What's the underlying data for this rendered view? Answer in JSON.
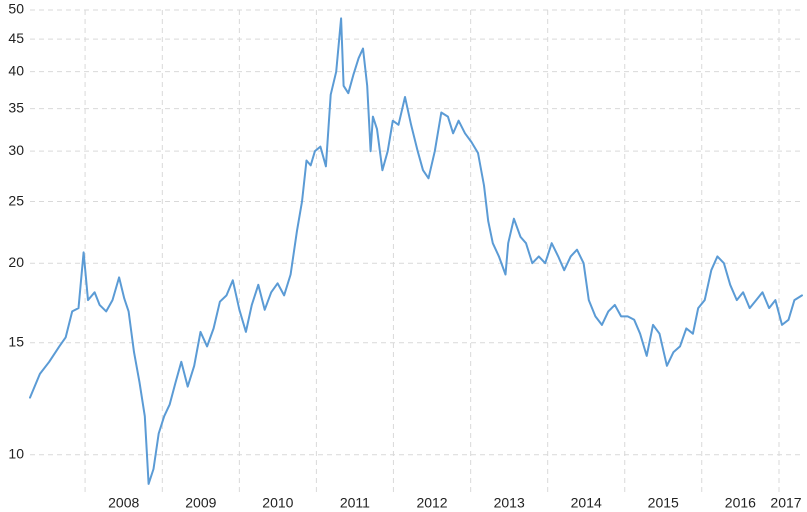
{
  "chart_data": {
    "type": "line",
    "title": "",
    "xlabel": "",
    "ylabel": "",
    "y_scale": "log",
    "ylim": [
      8.9,
      50
    ],
    "xlim": [
      "2007-04-15",
      "2017-04-20"
    ],
    "grid": true,
    "legend": "none",
    "y_ticks": [
      {
        "value": 10,
        "label": "10"
      },
      {
        "value": 15,
        "label": "15"
      },
      {
        "value": 20,
        "label": "20"
      },
      {
        "value": 25,
        "label": "25"
      },
      {
        "value": 30,
        "label": "30"
      },
      {
        "value": 35,
        "label": "35"
      },
      {
        "value": 40,
        "label": "40"
      },
      {
        "value": 45,
        "label": "45"
      },
      {
        "value": 50,
        "label": "50"
      }
    ],
    "x_ticks": [
      {
        "date": "2008-01-01",
        "label": "2008"
      },
      {
        "date": "2009-01-01",
        "label": "2009"
      },
      {
        "date": "2010-01-01",
        "label": "2010"
      },
      {
        "date": "2011-01-01",
        "label": "2011"
      },
      {
        "date": "2012-01-01",
        "label": "2012"
      },
      {
        "date": "2013-01-01",
        "label": "2013"
      },
      {
        "date": "2014-01-01",
        "label": "2014"
      },
      {
        "date": "2015-01-01",
        "label": "2015"
      },
      {
        "date": "2016-01-01",
        "label": "2016"
      },
      {
        "date": "2017-01-01",
        "label": "2017"
      }
    ],
    "series": [
      {
        "color": "#5b9bd5",
        "x": [
          "2007-04-15",
          "2007-06-01",
          "2007-07-15",
          "2007-09-01",
          "2007-10-01",
          "2007-11-01",
          "2007-12-01",
          "2007-12-25",
          "2008-01-15",
          "2008-02-15",
          "2008-03-10",
          "2008-04-10",
          "2008-05-10",
          "2008-06-10",
          "2008-07-05",
          "2008-07-25",
          "2008-08-20",
          "2008-09-15",
          "2008-10-10",
          "2008-10-28",
          "2008-11-20",
          "2008-12-15",
          "2009-01-10",
          "2009-02-05",
          "2009-03-05",
          "2009-04-01",
          "2009-05-01",
          "2009-06-01",
          "2009-07-01",
          "2009-08-01",
          "2009-09-01",
          "2009-10-01",
          "2009-11-01",
          "2009-12-01",
          "2010-01-01",
          "2010-02-01",
          "2010-03-01",
          "2010-04-01",
          "2010-05-01",
          "2010-06-01",
          "2010-07-01",
          "2010-08-01",
          "2010-09-01",
          "2010-10-01",
          "2010-10-25",
          "2010-11-15",
          "2010-12-05",
          "2010-12-25",
          "2011-01-20",
          "2011-02-15",
          "2011-03-10",
          "2011-04-05",
          "2011-04-28",
          "2011-05-10",
          "2011-06-01",
          "2011-06-25",
          "2011-07-20",
          "2011-08-10",
          "2011-08-30",
          "2011-09-15",
          "2011-09-26",
          "2011-10-15",
          "2011-11-10",
          "2011-12-05",
          "2011-12-29",
          "2012-01-25",
          "2012-02-25",
          "2012-03-25",
          "2012-04-25",
          "2012-05-20",
          "2012-06-15",
          "2012-07-15",
          "2012-08-15",
          "2012-09-15",
          "2012-10-10",
          "2012-11-05",
          "2012-12-05",
          "2013-01-05",
          "2013-02-05",
          "2013-03-05",
          "2013-03-25",
          "2013-04-16",
          "2013-05-15",
          "2013-06-15",
          "2013-06-28",
          "2013-07-25",
          "2013-08-25",
          "2013-09-20",
          "2013-10-20",
          "2013-11-20",
          "2013-12-20",
          "2014-01-20",
          "2014-02-20",
          "2014-03-20",
          "2014-04-20",
          "2014-05-20",
          "2014-06-20",
          "2014-07-15",
          "2014-08-15",
          "2014-09-15",
          "2014-10-15",
          "2014-11-15",
          "2014-12-15",
          "2015-01-15",
          "2015-02-15",
          "2015-03-15",
          "2015-04-15",
          "2015-05-15",
          "2015-06-15",
          "2015-07-20",
          "2015-08-20",
          "2015-09-20",
          "2015-10-20",
          "2015-11-20",
          "2015-12-15",
          "2016-01-15",
          "2016-02-15",
          "2016-03-15",
          "2016-04-15",
          "2016-05-15",
          "2016-06-15",
          "2016-07-15",
          "2016-08-15",
          "2016-09-15",
          "2016-10-15",
          "2016-11-15",
          "2016-12-15",
          "2017-01-15",
          "2017-02-15",
          "2017-03-15",
          "2017-04-20"
        ],
        "values": [
          12.3,
          13.4,
          14.0,
          14.8,
          15.3,
          16.8,
          17.0,
          20.8,
          17.5,
          18.0,
          17.2,
          16.8,
          17.5,
          19.0,
          17.6,
          16.8,
          14.5,
          13.0,
          11.5,
          9.0,
          9.5,
          10.8,
          11.5,
          12.0,
          13.0,
          14.0,
          12.8,
          13.8,
          15.6,
          14.8,
          15.8,
          17.4,
          17.8,
          18.8,
          16.9,
          15.6,
          17.2,
          18.5,
          16.9,
          18.0,
          18.6,
          17.8,
          19.2,
          22.5,
          25.0,
          29.0,
          28.5,
          30.0,
          30.5,
          28.4,
          36.8,
          40.0,
          48.5,
          38.0,
          37.0,
          39.5,
          42.0,
          43.5,
          38.0,
          30.0,
          34.0,
          32.5,
          28.0,
          30.0,
          33.5,
          33.0,
          36.5,
          33.0,
          30.0,
          28.0,
          27.2,
          30.0,
          34.5,
          34.0,
          32.0,
          33.5,
          32.0,
          31.0,
          29.8,
          26.5,
          23.3,
          21.5,
          20.5,
          19.2,
          21.5,
          23.5,
          22.0,
          21.5,
          20.0,
          20.5,
          20.0,
          21.5,
          20.5,
          19.5,
          20.5,
          21.0,
          20.0,
          17.5,
          16.5,
          16.0,
          16.8,
          17.2,
          16.5,
          16.5,
          16.3,
          15.5,
          14.3,
          16.0,
          15.5,
          13.8,
          14.5,
          14.8,
          15.8,
          15.5,
          17.0,
          17.5,
          19.5,
          20.5,
          20.0,
          18.5,
          17.5,
          18.0,
          17.0,
          17.5,
          18.0,
          17.0,
          17.5,
          16.0,
          16.3,
          17.5,
          17.8
        ]
      }
    ]
  }
}
